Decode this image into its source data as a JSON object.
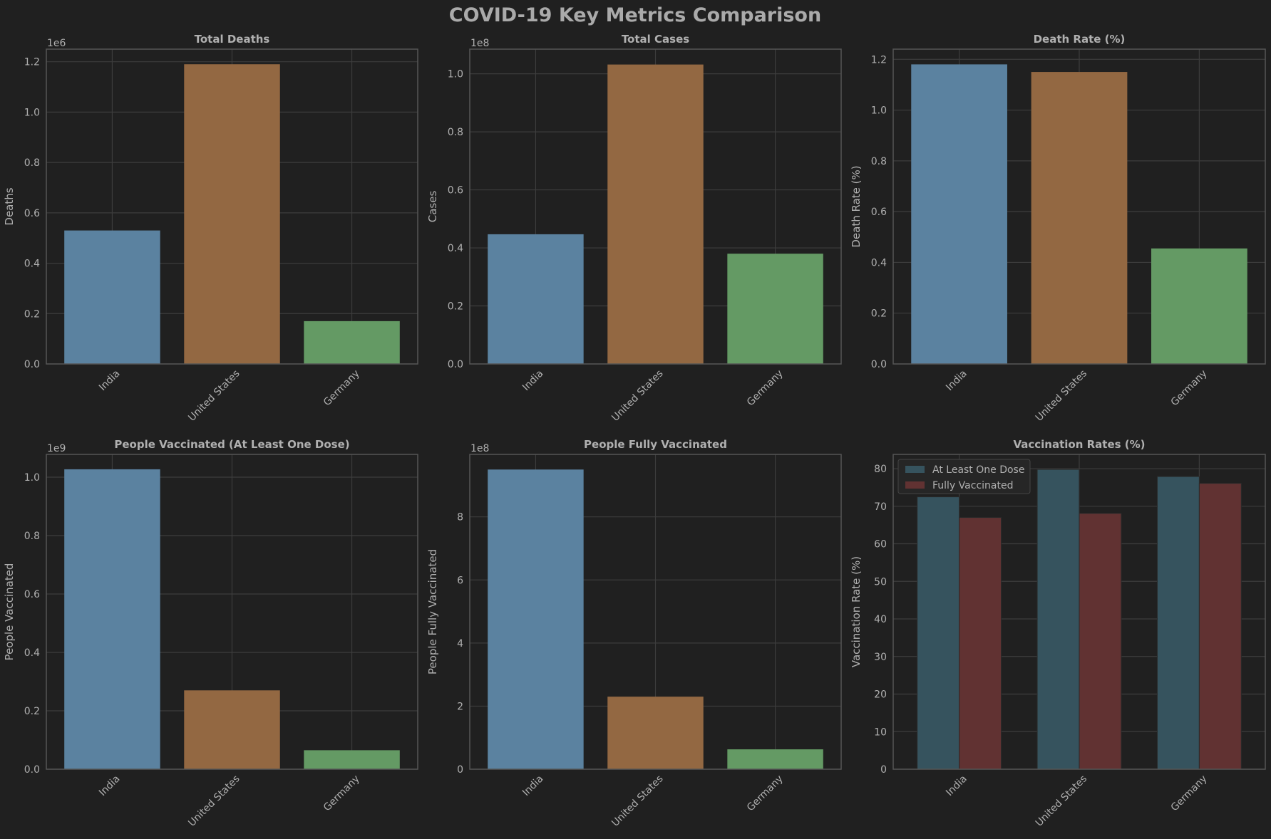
{
  "figure": {
    "title": "COVID-19 Key Metrics Comparison"
  },
  "colors": {
    "background": "#202020",
    "plot_border": "#555555",
    "grid": "#3d3d3d",
    "text": "#b0b0b0",
    "india": "#5b82a0",
    "united_states": "#936842",
    "germany": "#649a64",
    "at_least_one_dose": "#36535e",
    "fully_vaccinated": "#613232"
  },
  "chart_data": [
    {
      "type": "bar",
      "title": "Total Deaths",
      "ylabel": "Deaths",
      "xlabel": "",
      "offset_label": "1e6",
      "categories": [
        "India",
        "United States",
        "Germany"
      ],
      "values": [
        530000,
        1190000,
        170000
      ],
      "ylim": [
        0,
        1250000
      ],
      "yticks": [
        0,
        200000,
        400000,
        600000,
        800000,
        1000000,
        1200000
      ],
      "ytick_labels": [
        "0.0",
        "0.2",
        "0.4",
        "0.6",
        "0.8",
        "1.0",
        "1.2"
      ],
      "grid": true
    },
    {
      "type": "bar",
      "title": "Total Cases",
      "ylabel": "Cases",
      "xlabel": "",
      "offset_label": "1e8",
      "categories": [
        "India",
        "United States",
        "Germany"
      ],
      "values": [
        44700000,
        103200000,
        38000000
      ],
      "ylim": [
        0,
        108500000
      ],
      "yticks": [
        0,
        20000000,
        40000000,
        60000000,
        80000000,
        100000000
      ],
      "ytick_labels": [
        "0.0",
        "0.2",
        "0.4",
        "0.6",
        "0.8",
        "1.0"
      ],
      "grid": true
    },
    {
      "type": "bar",
      "title": "Death Rate (%)",
      "ylabel": "Death Rate (%)",
      "xlabel": "",
      "offset_label": "",
      "categories": [
        "India",
        "United States",
        "Germany"
      ],
      "values": [
        1.18,
        1.15,
        0.455
      ],
      "ylim": [
        0,
        1.24
      ],
      "yticks": [
        0,
        0.2,
        0.4,
        0.6,
        0.8,
        1.0,
        1.2
      ],
      "ytick_labels": [
        "0.0",
        "0.2",
        "0.4",
        "0.6",
        "0.8",
        "1.0",
        "1.2"
      ],
      "grid": true
    },
    {
      "type": "bar",
      "title": "People Vaccinated (At Least One Dose)",
      "ylabel": "People Vaccinated",
      "xlabel": "",
      "offset_label": "1e9",
      "categories": [
        "India",
        "United States",
        "Germany"
      ],
      "values": [
        1027000000,
        270000000,
        65000000
      ],
      "ylim": [
        0,
        1078000000
      ],
      "yticks": [
        0,
        200000000,
        400000000,
        600000000,
        800000000,
        1000000000
      ],
      "ytick_labels": [
        "0.0",
        "0.2",
        "0.4",
        "0.6",
        "0.8",
        "1.0"
      ],
      "grid": true
    },
    {
      "type": "bar",
      "title": "People Fully Vaccinated",
      "ylabel": "People Fully Vaccinated",
      "xlabel": "",
      "offset_label": "1e8",
      "categories": [
        "India",
        "United States",
        "Germany"
      ],
      "values": [
        950000000,
        230000000,
        63000000
      ],
      "ylim": [
        0,
        998000000
      ],
      "yticks": [
        0,
        200000000,
        400000000,
        600000000,
        800000000
      ],
      "ytick_labels": [
        "0",
        "2",
        "4",
        "6",
        "8"
      ],
      "grid": true
    },
    {
      "type": "bar",
      "title": "Vaccination Rates (%)",
      "ylabel": "Vaccination Rate (%)",
      "xlabel": "",
      "offset_label": "",
      "categories": [
        "India",
        "United States",
        "Germany"
      ],
      "series": [
        {
          "name": "At Least One Dose",
          "values": [
            72.5,
            79.8,
            77.9
          ]
        },
        {
          "name": "Fully Vaccinated",
          "values": [
            67.0,
            68.1,
            76.1
          ]
        }
      ],
      "ylim": [
        0,
        83.8
      ],
      "yticks": [
        0,
        10,
        20,
        30,
        40,
        50,
        60,
        70,
        80
      ],
      "ytick_labels": [
        "0",
        "10",
        "20",
        "30",
        "40",
        "50",
        "60",
        "70",
        "80"
      ],
      "legend": "top-left",
      "grid": true
    }
  ]
}
